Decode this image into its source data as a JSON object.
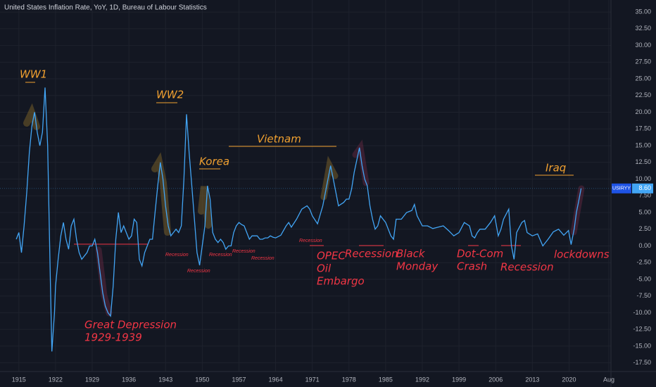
{
  "chart_data": {
    "type": "line",
    "title": "United States Inflation Rate, YoY, 1D, Bureau of Labour Statistics",
    "symbol": "USIRYY",
    "last_label": "8.60",
    "xlim": [
      1911.4,
      2028.0
    ],
    "ylim": [
      -18.8,
      36.8
    ],
    "xticks": [
      1915,
      1922,
      1929,
      1936,
      1943,
      1950,
      1957,
      1964,
      1971,
      1978,
      1985,
      1992,
      1999,
      2006,
      2013,
      2020,
      {
        "value": 2027.6,
        "label": "Aug"
      }
    ],
    "yticks": [
      {
        "value": 35,
        "label": "35.00"
      },
      {
        "value": 32.5,
        "label": "32.50"
      },
      {
        "value": 30,
        "label": "30.00"
      },
      {
        "value": 27.5,
        "label": "27.50"
      },
      {
        "value": 25,
        "label": "25.00"
      },
      {
        "value": 22.5,
        "label": "22.50"
      },
      {
        "value": 20,
        "label": "20.00"
      },
      {
        "value": 17.5,
        "label": "17.50"
      },
      {
        "value": 15,
        "label": "15.00"
      },
      {
        "value": 12.5,
        "label": "12.50"
      },
      {
        "value": 10,
        "label": "10.00"
      },
      {
        "value": 7.5,
        "label": "7.50"
      },
      {
        "value": 5,
        "label": "5.00"
      },
      {
        "value": 2.5,
        "label": "2.50"
      },
      {
        "value": 0,
        "label": "0.00"
      },
      {
        "value": -2.5,
        "label": "-2.50"
      },
      {
        "value": -5,
        "label": "-5.00"
      },
      {
        "value": -7.5,
        "label": "-7.50"
      },
      {
        "value": -10,
        "label": "-10.00"
      },
      {
        "value": -12.5,
        "label": "-12.50"
      },
      {
        "value": -15,
        "label": "-15.00"
      },
      {
        "value": -17.5,
        "label": "-17.50"
      }
    ],
    "grid": true,
    "series": [
      {
        "name": "USIRYY",
        "color": "#42a5f5",
        "x": [
          1914.5,
          1915,
          1915.5,
          1916,
          1916.5,
          1917,
          1917.5,
          1918,
          1918.5,
          1919,
          1919.5,
          1920,
          1920.5,
          1921,
          1921.3,
          1921.8,
          1922,
          1922.5,
          1923,
          1923.5,
          1924,
          1924.5,
          1925,
          1925.5,
          1926,
          1926.5,
          1927,
          1927.5,
          1928,
          1928.5,
          1929,
          1929.5,
          1930,
          1930.5,
          1931,
          1931.5,
          1932,
          1932.5,
          1933,
          1933.5,
          1934,
          1934.5,
          1935,
          1935.5,
          1936,
          1936.5,
          1937,
          1937.5,
          1938,
          1938.5,
          1939,
          1939.5,
          1940,
          1940.5,
          1941,
          1941.5,
          1942,
          1942.5,
          1943,
          1943.5,
          1944,
          1944.5,
          1945,
          1945.5,
          1946,
          1946.5,
          1947,
          1947.5,
          1948,
          1948.5,
          1949,
          1949.5,
          1950,
          1950.5,
          1951,
          1951.5,
          1952,
          1952.5,
          1953,
          1953.5,
          1954,
          1954.5,
          1955,
          1955.5,
          1956,
          1956.5,
          1957,
          1957.5,
          1958,
          1958.5,
          1959,
          1959.5,
          1960,
          1960.5,
          1961,
          1961.5,
          1962,
          1962.5,
          1963,
          1963.5,
          1964,
          1965,
          1966,
          1966.5,
          1967,
          1968,
          1969,
          1970,
          1970.5,
          1971,
          1972,
          1973,
          1973.5,
          1974,
          1974.5,
          1975,
          1975.5,
          1976,
          1977,
          1977.5,
          1978,
          1978.5,
          1979,
          1980,
          1980.5,
          1981,
          1981.5,
          1982,
          1982.5,
          1983,
          1983.5,
          1984,
          1985,
          1986,
          1986.5,
          1987,
          1988,
          1989,
          1990,
          1990.5,
          1991,
          1992,
          1993,
          1994,
          1995,
          1996,
          1997,
          1998,
          1999,
          2000,
          2001,
          2001.5,
          2002,
          2002.5,
          2003,
          2004,
          2005,
          2005.8,
          2006.5,
          2007,
          2007.5,
          2008.5,
          2009,
          2009.5,
          2010,
          2011,
          2011.5,
          2012,
          2013,
          2014,
          2015,
          2016,
          2017,
          2018,
          2019,
          2019.9,
          2020.4,
          2021,
          2021.4,
          2021.8,
          2022.3
        ],
        "values": [
          1,
          2,
          -1,
          3,
          8,
          14,
          18,
          20,
          17,
          15,
          17,
          23.7,
          15,
          -5,
          -15.8,
          -10,
          -6,
          -2,
          1.5,
          3.5,
          1,
          -0.5,
          3,
          4,
          1,
          -1,
          -2,
          -1.5,
          -1,
          0,
          0,
          1,
          -1,
          -4,
          -7,
          -9,
          -10,
          -10.5,
          -6,
          1,
          5,
          2,
          3,
          2,
          1,
          1.5,
          4,
          3.5,
          -2,
          -3,
          -1,
          0,
          1,
          1,
          5,
          9,
          12.5,
          10,
          6,
          3,
          1.5,
          2,
          2.5,
          2,
          3,
          10,
          19.7,
          14,
          9,
          4,
          -1,
          -2.9,
          0,
          3,
          9,
          7,
          2,
          1,
          0.5,
          1,
          0.5,
          -0.5,
          0,
          0,
          2,
          3,
          3.5,
          3.2,
          3,
          2,
          1,
          1.5,
          1.5,
          1.5,
          1,
          1,
          1.2,
          1.2,
          1.5,
          1.3,
          1.2,
          1.6,
          3,
          3.5,
          2.8,
          4,
          5.5,
          6,
          5.5,
          4.5,
          3.3,
          6,
          8,
          10,
          12,
          10,
          8,
          6,
          6.5,
          7,
          7,
          8.5,
          11,
          14.7,
          12,
          10,
          9,
          6,
          4,
          2.5,
          3,
          4.5,
          3.5,
          1.5,
          1,
          4,
          4,
          5,
          5.3,
          6.2,
          4.5,
          3,
          3,
          2.6,
          2.8,
          3,
          2.3,
          1.5,
          2,
          3.5,
          3,
          1.5,
          1.2,
          2,
          2.5,
          2.5,
          3.5,
          4.5,
          1.5,
          2.5,
          4,
          5.5,
          0,
          -2,
          2,
          3.5,
          3.8,
          2,
          1.5,
          1.8,
          0,
          1,
          2.1,
          2.5,
          1.6,
          2.3,
          0.2,
          2.6,
          5,
          6.5,
          8.6
        ]
      }
    ]
  },
  "annotations": [
    "WW1",
    "WW2",
    "Korea",
    "Vietnam",
    "Iraq",
    "Great Depression",
    "1929-1939",
    "OPEC",
    "Oil",
    "Embargo",
    "Recession",
    "Black",
    "Monday",
    "Dot-Com",
    "Crash",
    "Recession",
    "lockdowns",
    "Recession",
    "Recession",
    "Recession",
    "Recession",
    "Recession",
    "Recession"
  ]
}
